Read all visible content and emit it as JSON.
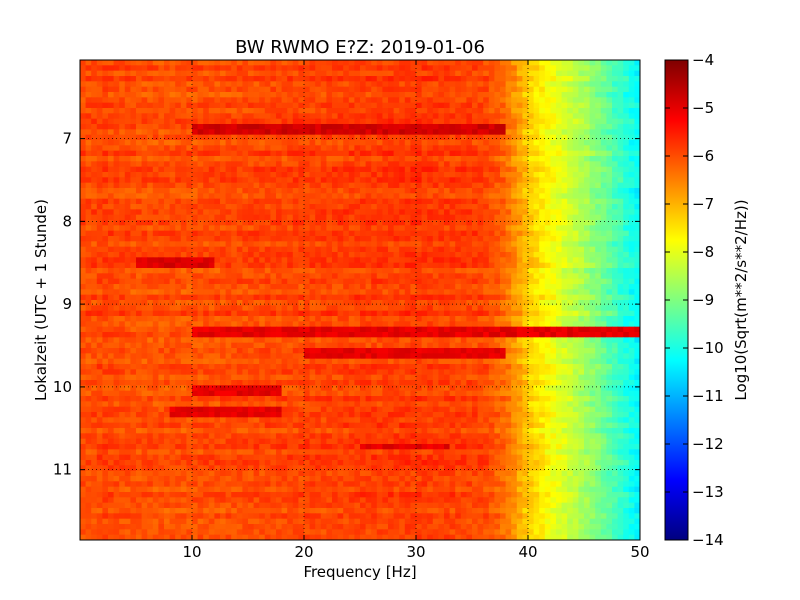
{
  "chart_data": {
    "type": "heatmap",
    "title": "BW RWMO E?Z: 2019-01-06",
    "xlabel": "Frequency [Hz]",
    "ylabel": "Lokalzeit (UTC + 1 Stunde)",
    "xlim": [
      0,
      50
    ],
    "ylim": [
      6.05,
      11.85
    ],
    "y_inverted": true,
    "x_ticks": [
      10,
      20,
      30,
      40,
      50
    ],
    "y_ticks": [
      7,
      8,
      9,
      10,
      11
    ],
    "grid": true,
    "colorbar": {
      "label": "Log10(Sqrt(m**2/s**2/Hz))",
      "range": [
        -14,
        -4
      ],
      "ticks": [
        -4,
        -5,
        -6,
        -7,
        -8,
        -9,
        -10,
        -11,
        -12,
        -13,
        -14
      ],
      "colormap": "jet"
    },
    "profile": {
      "frequency": [
        0,
        2,
        5,
        10,
        20,
        30,
        36,
        38,
        40,
        42,
        44,
        46,
        48,
        50
      ],
      "level": [
        -6.0,
        -5.9,
        -6.0,
        -6.0,
        -5.9,
        -5.8,
        -5.9,
        -6.3,
        -7.2,
        -7.8,
        -8.3,
        -8.9,
        -9.6,
        -10.3
      ]
    },
    "events": [
      {
        "time": 6.88,
        "f_start": 10,
        "f_end": 38,
        "level": -4.8
      },
      {
        "time": 8.52,
        "f_start": 5,
        "f_end": 12,
        "level": -4.9
      },
      {
        "time": 9.32,
        "f_start": 10,
        "f_end": 50,
        "level": -5.0
      },
      {
        "time": 9.58,
        "f_start": 20,
        "f_end": 38,
        "level": -5.0
      },
      {
        "time": 10.05,
        "f_start": 10,
        "f_end": 18,
        "level": -5.0
      },
      {
        "time": 10.3,
        "f_start": 8,
        "f_end": 18,
        "level": -5.0
      },
      {
        "time": 10.72,
        "f_start": 25,
        "f_end": 33,
        "level": -5.0
      }
    ]
  }
}
